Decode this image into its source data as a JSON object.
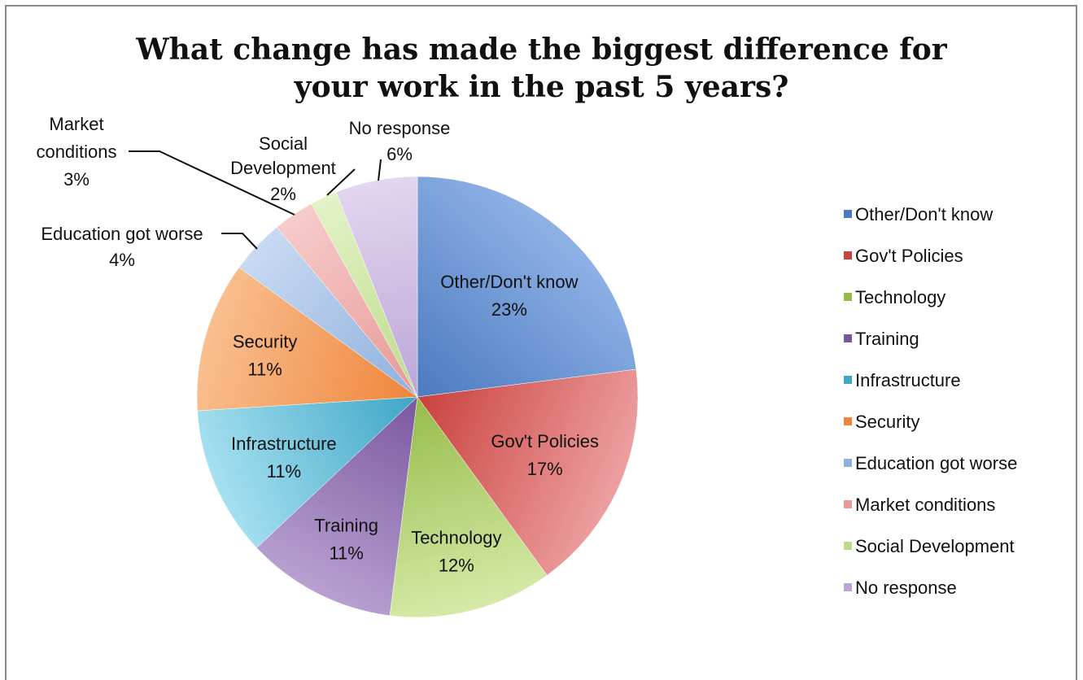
{
  "chart_data": {
    "type": "pie",
    "title_lines": [
      "What change has made the biggest difference for",
      "your work in the past 5 years?"
    ],
    "legend_position": "right",
    "slices": [
      {
        "label": "Other/Don't know",
        "percent_label": "23%",
        "value": 23,
        "color": "#4a7ac0",
        "light": "#8fb2e6",
        "label_position": "inside"
      },
      {
        "label": "Gov't Policies",
        "percent_label": "17%",
        "value": 17,
        "color": "#c9423e",
        "light": "#eda0a0",
        "label_position": "inside"
      },
      {
        "label": "Technology",
        "percent_label": "12%",
        "value": 12,
        "color": "#96bc4a",
        "light": "#d6eaa8",
        "label_position": "inside"
      },
      {
        "label": "Training",
        "percent_label": "11%",
        "value": 11,
        "color": "#7b57a0",
        "light": "#b8a0d0",
        "label_position": "inside"
      },
      {
        "label": "Infrastructure",
        "percent_label": "11%",
        "value": 11,
        "color": "#3ea6c7",
        "light": "#a6e0f0",
        "label_position": "inside"
      },
      {
        "label": "Security",
        "percent_label": "11%",
        "value": 11,
        "color": "#f0853a",
        "light": "#f8bf90",
        "label_position": "inside"
      },
      {
        "label": "Education got worse",
        "percent_label": "4%",
        "value": 4,
        "color": "#8fb0dc",
        "light": "#c8daf2",
        "label_position": "outside"
      },
      {
        "label": "Market conditions",
        "percent_label": "3%",
        "value": 3,
        "color": "#e89896",
        "light": "#f6cccb",
        "label_position": "outside"
      },
      {
        "label": "Social Development",
        "percent_label": "2%",
        "value": 2,
        "color": "#bcdc8a",
        "light": "#e4f2c8",
        "label_position": "outside"
      },
      {
        "label": "No response",
        "percent_label": "6%",
        "value": 6,
        "color": "#bba6d6",
        "light": "#e2d6f0",
        "label_position": "outside"
      }
    ]
  }
}
